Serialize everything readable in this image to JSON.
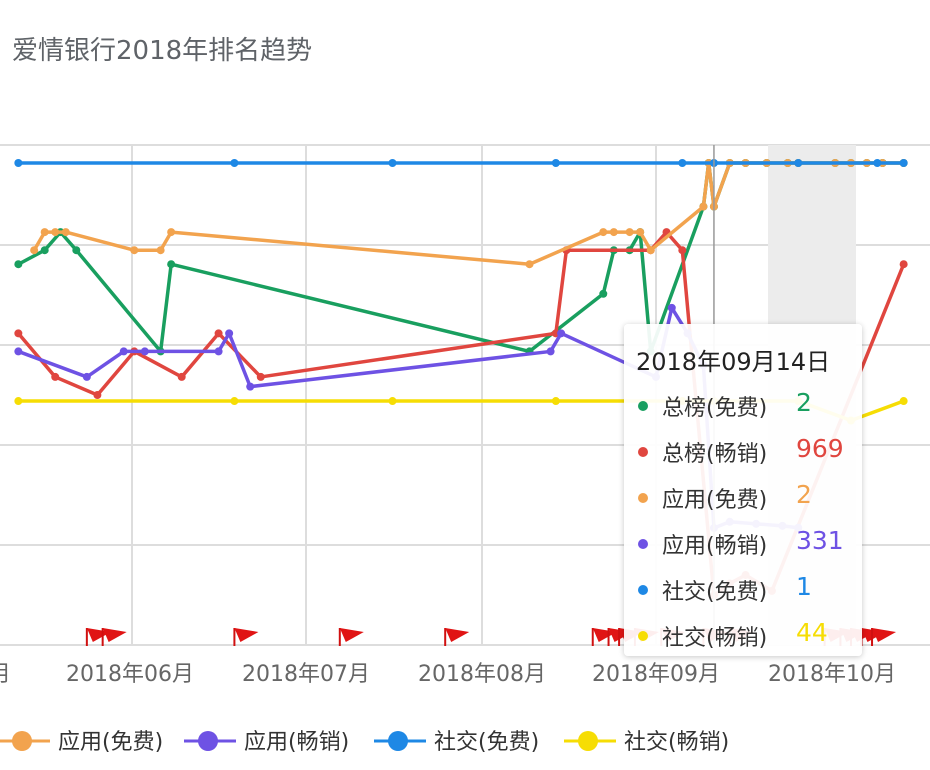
{
  "title": "爱情银行2018年排名趋势",
  "chart_data": {
    "type": "line",
    "y_scale": "log",
    "y_inverted": true,
    "x_tick_labels": [
      "月",
      "2018年06月",
      "2018年07月",
      "2018年08月",
      "2018年09月",
      "2018年10月"
    ],
    "series": [
      {
        "name": "总榜(免费)",
        "color": "#199f5f",
        "points": [
          [
            "2018-05-05",
            5
          ],
          [
            "2018-05-10",
            4
          ],
          [
            "2018-05-13",
            3
          ],
          [
            "2018-05-16",
            4
          ],
          [
            "2018-06-01",
            20
          ],
          [
            "2018-06-03",
            5
          ],
          [
            "2018-08-10",
            20
          ],
          [
            "2018-08-24",
            8
          ],
          [
            "2018-08-26",
            4
          ],
          [
            "2018-08-29",
            4
          ],
          [
            "2018-08-31",
            3
          ],
          [
            "2018-09-02",
            20
          ],
          [
            "2018-09-12",
            2
          ],
          [
            "2018-09-13",
            1
          ],
          [
            "2018-09-14",
            2
          ],
          [
            "2018-09-17",
            1
          ],
          [
            "2018-09-20",
            1
          ],
          [
            "2018-09-24",
            1
          ],
          [
            "2018-09-28",
            1
          ],
          [
            "2018-09-30",
            1
          ],
          [
            "2018-10-07",
            1
          ],
          [
            "2018-10-10",
            1
          ],
          [
            "2018-10-13",
            1
          ],
          [
            "2018-10-16",
            1
          ],
          [
            "2018-10-20",
            1
          ]
        ]
      },
      {
        "name": "总榜(畅销)",
        "color": "#e0463f",
        "points": [
          [
            "2018-05-05",
            15
          ],
          [
            "2018-05-12",
            30
          ],
          [
            "2018-05-20",
            40
          ],
          [
            "2018-05-27",
            20
          ],
          [
            "2018-06-05",
            30
          ],
          [
            "2018-06-12",
            15
          ],
          [
            "2018-06-20",
            30
          ],
          [
            "2018-08-15",
            15
          ],
          [
            "2018-08-17",
            4
          ],
          [
            "2018-09-02",
            4
          ],
          [
            "2018-09-05",
            3
          ],
          [
            "2018-09-08",
            4
          ],
          [
            "2018-09-14",
            969
          ],
          [
            "2018-09-17",
            800
          ],
          [
            "2018-09-20",
            700
          ],
          [
            "2018-09-25",
            900
          ],
          [
            "2018-10-20",
            5
          ]
        ]
      },
      {
        "name": "应用(免费)",
        "color": "#f2a34e",
        "points": [
          [
            "2018-05-08",
            4
          ],
          [
            "2018-05-10",
            3
          ],
          [
            "2018-05-12",
            3
          ],
          [
            "2018-05-14",
            3
          ],
          [
            "2018-05-27",
            4
          ],
          [
            "2018-06-01",
            4
          ],
          [
            "2018-06-03",
            3
          ],
          [
            "2018-08-10",
            5
          ],
          [
            "2018-08-24",
            3
          ],
          [
            "2018-08-26",
            3
          ],
          [
            "2018-08-29",
            3
          ],
          [
            "2018-08-31",
            3
          ],
          [
            "2018-09-02",
            4
          ],
          [
            "2018-09-12",
            2
          ],
          [
            "2018-09-13",
            1
          ],
          [
            "2018-09-14",
            2
          ],
          [
            "2018-09-17",
            1
          ],
          [
            "2018-09-20",
            1
          ],
          [
            "2018-09-24",
            1
          ],
          [
            "2018-09-28",
            1
          ],
          [
            "2018-09-30",
            1
          ],
          [
            "2018-10-07",
            1
          ],
          [
            "2018-10-10",
            1
          ],
          [
            "2018-10-13",
            1
          ],
          [
            "2018-10-16",
            1
          ],
          [
            "2018-10-20",
            1
          ]
        ]
      },
      {
        "name": "应用(畅销)",
        "color": "#6e52e4",
        "points": [
          [
            "2018-05-05",
            20
          ],
          [
            "2018-05-18",
            30
          ],
          [
            "2018-05-25",
            20
          ],
          [
            "2018-05-29",
            20
          ],
          [
            "2018-06-12",
            20
          ],
          [
            "2018-06-14",
            15
          ],
          [
            "2018-06-18",
            35
          ],
          [
            "2018-08-14",
            20
          ],
          [
            "2018-08-16",
            15
          ],
          [
            "2018-09-03",
            30
          ],
          [
            "2018-09-06",
            10
          ],
          [
            "2018-09-09",
            15
          ],
          [
            "2018-09-12",
            25
          ],
          [
            "2018-09-14",
            331
          ],
          [
            "2018-09-17",
            300
          ],
          [
            "2018-09-22",
            310
          ],
          [
            "2018-09-27",
            320
          ],
          [
            "2018-09-30",
            330
          ]
        ]
      },
      {
        "name": "社交(免费)",
        "color": "#1e88e5",
        "points": [
          [
            "2018-05-05",
            1
          ],
          [
            "2018-06-15",
            1
          ],
          [
            "2018-07-15",
            1
          ],
          [
            "2018-08-15",
            1
          ],
          [
            "2018-09-08",
            1
          ],
          [
            "2018-09-14",
            1
          ],
          [
            "2018-09-30",
            1
          ],
          [
            "2018-10-15",
            1
          ],
          [
            "2018-10-20",
            1
          ]
        ]
      },
      {
        "name": "社交(畅销)",
        "color": "#f6dd04",
        "points": [
          [
            "2018-05-05",
            44
          ],
          [
            "2018-06-15",
            44
          ],
          [
            "2018-07-15",
            44
          ],
          [
            "2018-08-15",
            44
          ],
          [
            "2018-09-08",
            44
          ],
          [
            "2018-09-14",
            44
          ],
          [
            "2018-09-30",
            44
          ],
          [
            "2018-10-10",
            60
          ],
          [
            "2018-10-20",
            44
          ]
        ]
      }
    ],
    "highlight_date": "2018-09-14"
  },
  "tooltip": {
    "date": "2018年09月14日",
    "rows": [
      {
        "name": "总榜(免费)",
        "value": "2",
        "color": "#199f5f"
      },
      {
        "name": "总榜(畅销)",
        "value": "969",
        "color": "#e0463f"
      },
      {
        "name": "应用(免费)",
        "value": "2",
        "color": "#f2a34e"
      },
      {
        "name": "应用(畅销)",
        "value": "331",
        "color": "#6e52e4"
      },
      {
        "name": "社交(免费)",
        "value": "1",
        "color": "#1e88e5"
      },
      {
        "name": "社交(畅销)",
        "value": "44",
        "color": "#f6dd04"
      }
    ]
  },
  "legend": [
    {
      "name": "应用(免费)",
      "color": "#f2a34e"
    },
    {
      "name": "应用(畅销)",
      "color": "#6e52e4"
    },
    {
      "name": "社交(免费)",
      "color": "#1e88e5"
    },
    {
      "name": "社交(畅销)",
      "color": "#f6dd04"
    }
  ],
  "marker_flags": [
    "2018-05-18",
    "2018-05-21",
    "2018-06-15",
    "2018-07-05",
    "2018-07-25",
    "2018-08-22",
    "2018-08-25",
    "2018-08-27",
    "2018-08-30",
    "2018-09-04",
    "2018-09-12",
    "2018-09-17",
    "2018-10-05",
    "2018-10-08",
    "2018-10-10",
    "2018-10-12",
    "2018-10-14"
  ]
}
